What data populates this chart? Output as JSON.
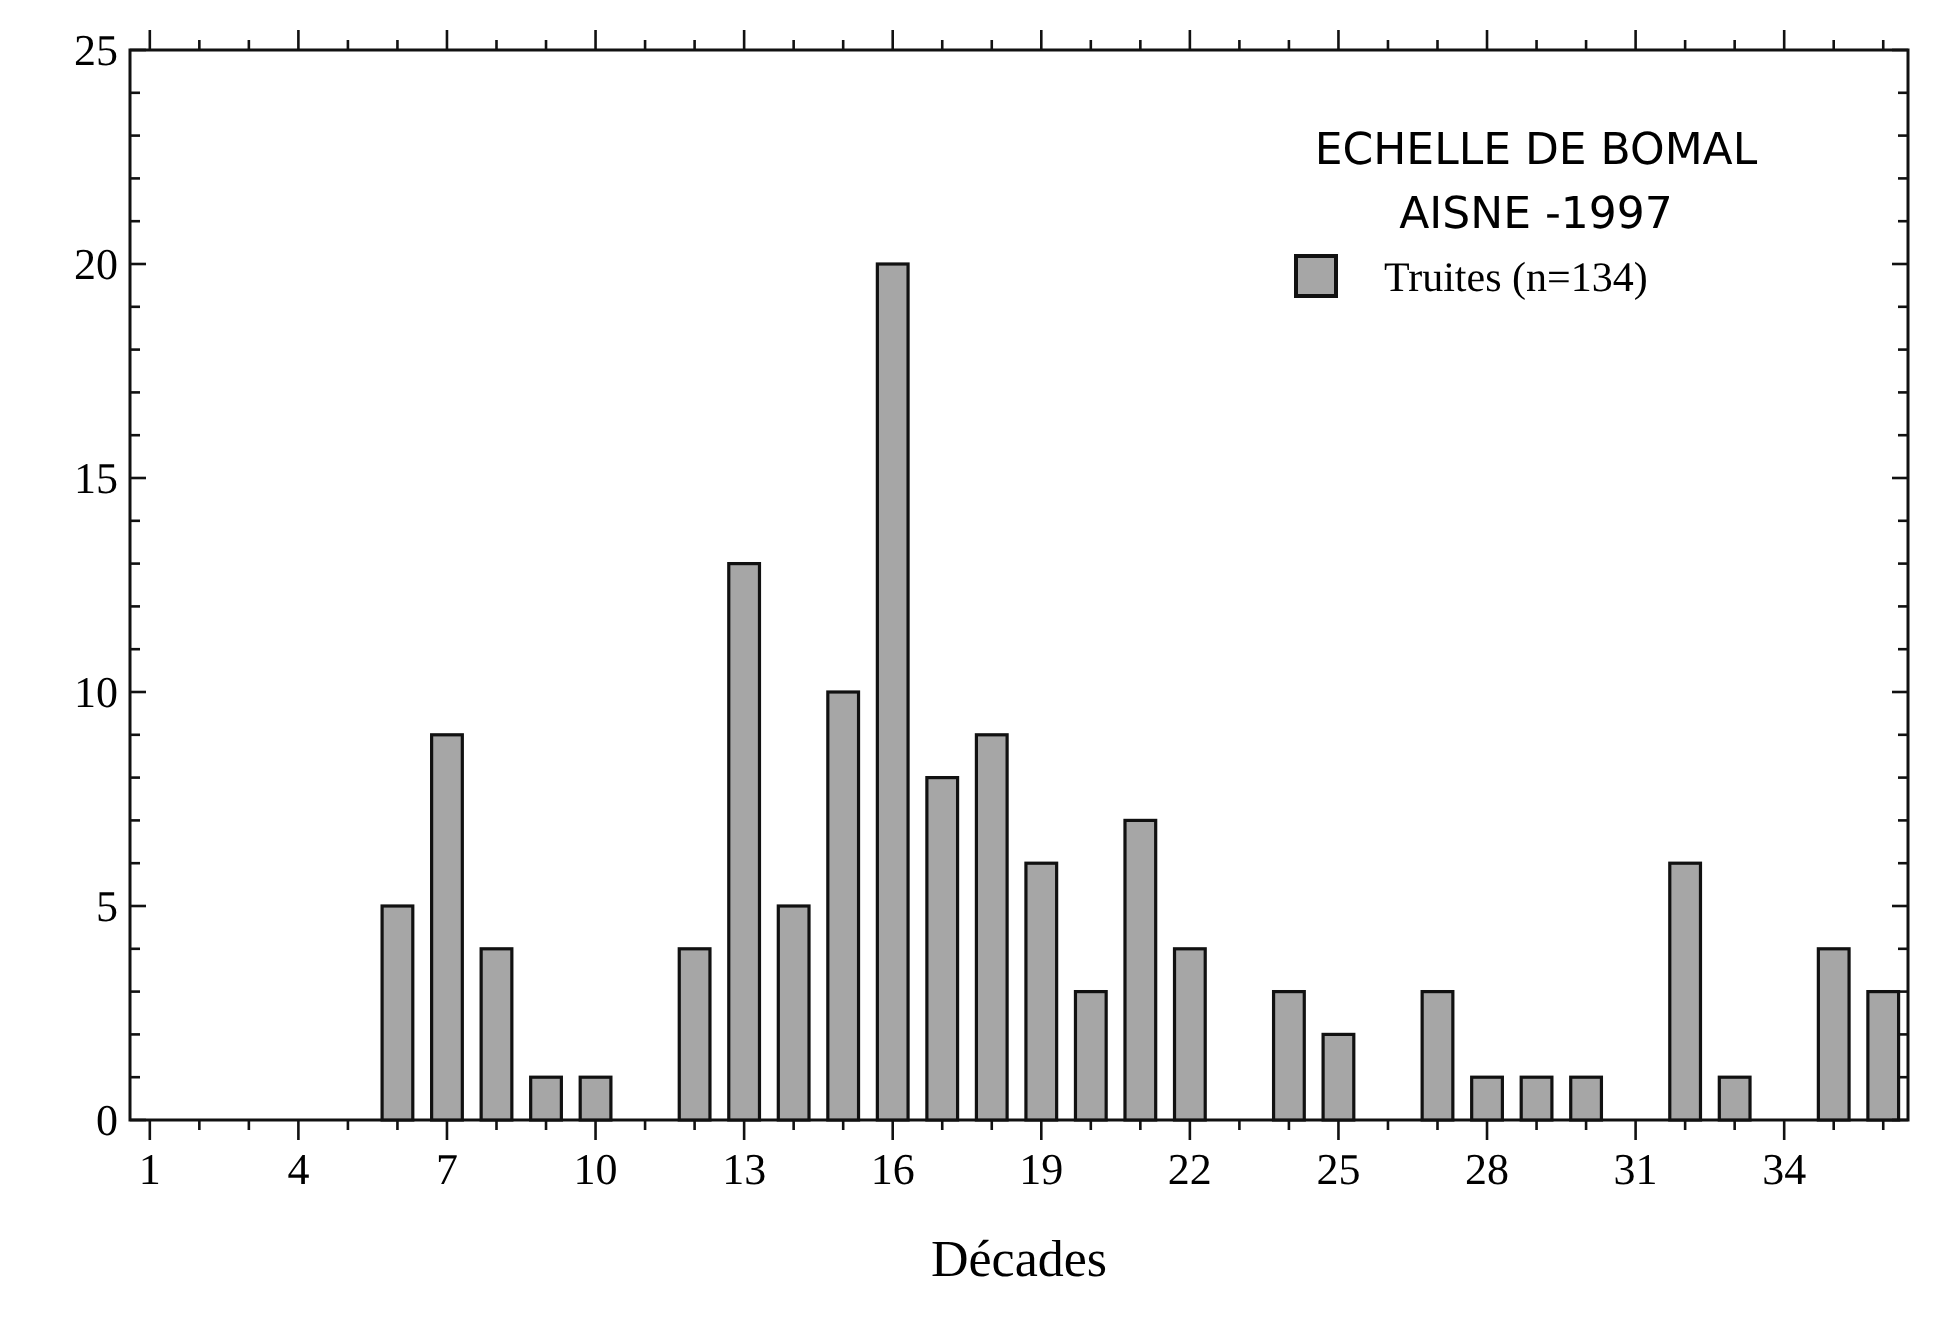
{
  "chart_data": {
    "type": "bar",
    "title": "ECHELLE DE BOMAL",
    "subtitle": "AISNE -1997",
    "xlabel": "Décades",
    "x": [
      1,
      2,
      3,
      4,
      5,
      6,
      7,
      8,
      9,
      10,
      11,
      12,
      13,
      14,
      15,
      16,
      17,
      18,
      19,
      20,
      21,
      22,
      23,
      24,
      25,
      26,
      27,
      28,
      29,
      30,
      31,
      32,
      33,
      34,
      35,
      36
    ],
    "series": [
      {
        "name": "Truites (n=134)",
        "color": "#a6a6a6",
        "values": [
          0,
          0,
          0,
          0,
          0,
          5,
          9,
          4,
          1,
          1,
          0,
          4,
          13,
          5,
          10,
          20,
          8,
          9,
          6,
          3,
          7,
          4,
          0,
          3,
          2,
          0,
          3,
          1,
          1,
          1,
          0,
          6,
          1,
          0,
          4,
          3
        ]
      }
    ],
    "xlim": [
      0.6,
      36.5
    ],
    "xticks": [
      1,
      {
        "value": 2,
        "label": null
      },
      {
        "value": 3,
        "label": null
      },
      4,
      {
        "value": 5,
        "label": null
      },
      {
        "value": 6,
        "label": null
      },
      7,
      {
        "value": 8,
        "label": null
      },
      {
        "value": 9,
        "label": null
      },
      10,
      {
        "value": 11,
        "label": null
      },
      {
        "value": 12,
        "label": null
      },
      13,
      {
        "value": 14,
        "label": null
      },
      {
        "value": 15,
        "label": null
      },
      16,
      {
        "value": 17,
        "label": null
      },
      {
        "value": 18,
        "label": null
      },
      19,
      {
        "value": 20,
        "label": null
      },
      {
        "value": 21,
        "label": null
      },
      22,
      {
        "value": 23,
        "label": null
      },
      {
        "value": 24,
        "label": null
      },
      25,
      {
        "value": 26,
        "label": null
      },
      {
        "value": 27,
        "label": null
      },
      28,
      {
        "value": 29,
        "label": null
      },
      {
        "value": 30,
        "label": null
      },
      31,
      {
        "value": 32,
        "label": null
      },
      {
        "value": 33,
        "label": null
      },
      34,
      {
        "value": 35,
        "label": null
      },
      {
        "value": 36,
        "label": null
      }
    ],
    "ylim": [
      0,
      25
    ],
    "yticks": [
      0,
      {
        "value": 1,
        "label": null
      },
      {
        "value": 2,
        "label": null
      },
      {
        "value": 3,
        "label": null
      },
      {
        "value": 4,
        "label": null
      },
      5,
      {
        "value": 6,
        "label": null
      },
      {
        "value": 7,
        "label": null
      },
      {
        "value": 8,
        "label": null
      },
      {
        "value": 9,
        "label": null
      },
      10,
      {
        "value": 11,
        "label": null
      },
      {
        "value": 12,
        "label": null
      },
      {
        "value": 13,
        "label": null
      },
      {
        "value": 14,
        "label": null
      },
      15,
      {
        "value": 16,
        "label": null
      },
      {
        "value": 17,
        "label": null
      },
      {
        "value": 18,
        "label": null
      },
      {
        "value": 19,
        "label": null
      },
      20,
      {
        "value": 21,
        "label": null
      },
      {
        "value": 22,
        "label": null
      },
      {
        "value": 23,
        "label": null
      },
      {
        "value": 24,
        "label": null
      },
      25
    ],
    "legend": "top right",
    "grid": false
  }
}
